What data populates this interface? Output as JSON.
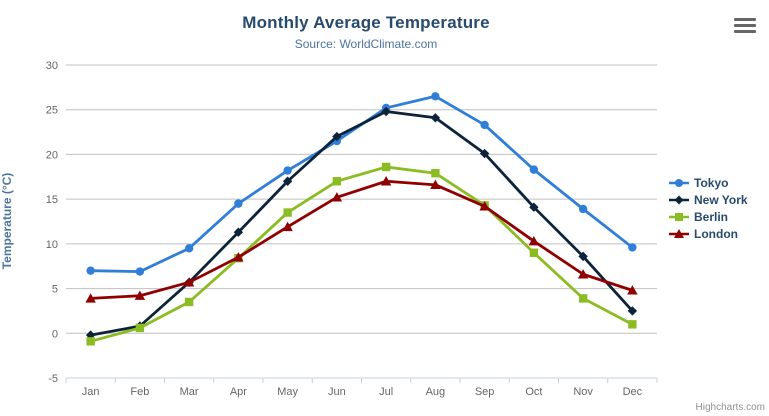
{
  "chart": {
    "title": "Monthly Average Temperature",
    "subtitle": "Source: WorldClimate.com",
    "y_axis_title": "Temperature (°C)",
    "credit": "Highcharts.com"
  },
  "colors": {
    "title": "#274b6d",
    "subtitle": "#4d759e",
    "axis_labels": "#666666",
    "gridline": "#c0c0c0",
    "axis_line": "#c0d0e0",
    "legend_text": "#274b6d",
    "credit": "#909090"
  },
  "chart_data": {
    "type": "line",
    "title": "Monthly Average Temperature",
    "subtitle": "Source: WorldClimate.com",
    "xlabel": "",
    "ylabel": "Temperature (°C)",
    "ylim": [
      -5,
      30
    ],
    "ytick_step": 5,
    "grid": true,
    "legend_position": "right-middle",
    "categories": [
      "Jan",
      "Feb",
      "Mar",
      "Apr",
      "May",
      "Jun",
      "Jul",
      "Aug",
      "Sep",
      "Oct",
      "Nov",
      "Dec"
    ],
    "series": [
      {
        "name": "Tokyo",
        "color": "#2f7ed8",
        "marker": "circle",
        "values": [
          7.0,
          6.9,
          9.5,
          14.5,
          18.2,
          21.5,
          25.2,
          26.5,
          23.3,
          18.3,
          13.9,
          9.6
        ]
      },
      {
        "name": "New York",
        "color": "#0d233a",
        "marker": "diamond",
        "values": [
          -0.2,
          0.8,
          5.7,
          11.3,
          17.0,
          22.0,
          24.8,
          24.1,
          20.1,
          14.1,
          8.6,
          2.5
        ]
      },
      {
        "name": "Berlin",
        "color": "#8bbc21",
        "marker": "square",
        "values": [
          -0.9,
          0.6,
          3.5,
          8.4,
          13.5,
          17.0,
          18.6,
          17.9,
          14.3,
          9.0,
          3.9,
          1.0
        ]
      },
      {
        "name": "London",
        "color": "#910000",
        "marker": "triangle",
        "values": [
          3.9,
          4.2,
          5.7,
          8.5,
          11.9,
          15.2,
          17.0,
          16.6,
          14.2,
          10.3,
          6.6,
          4.8
        ]
      }
    ]
  }
}
